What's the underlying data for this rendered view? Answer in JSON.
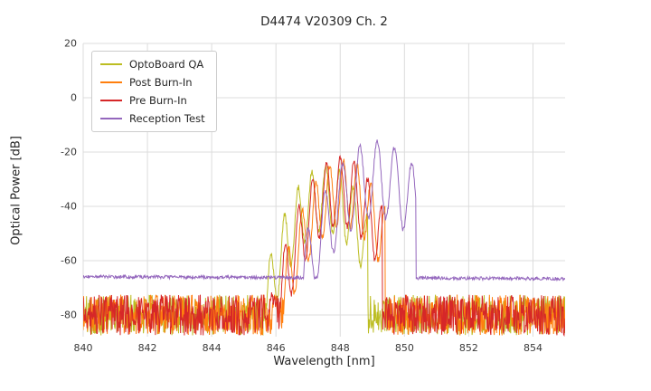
{
  "chart_data": {
    "type": "line",
    "title": "D4474 V20309 Ch. 2",
    "xlabel": "Wavelength [nm]",
    "ylabel": "Optical Power [dB]",
    "xlim": [
      840,
      855
    ],
    "ylim": [
      -88,
      20
    ],
    "xticks": [
      840,
      842,
      844,
      846,
      848,
      850,
      852,
      854
    ],
    "yticks": [
      20,
      0,
      -20,
      -40,
      -60,
      -80
    ],
    "grid": true,
    "grid_color": "#dcdcdc",
    "legend_position": "upper-left",
    "sample_step_nm": 0.015,
    "series": [
      {
        "name": "OptoBoard QA",
        "color": "#bcbd22",
        "seed": 101,
        "noise_floor_db": -80,
        "noise_amplitude_db": 7.5,
        "floor_slope_db_per_nm": 0,
        "spectrum": {
          "start_nm": 845.4,
          "end_nm": 848.85,
          "center_nm": 847.55,
          "peak_db": -25,
          "envelope_k_db_per_nm2": 11,
          "mode_spacing_nm": 0.43,
          "mode_depth_db": 24,
          "texture_noise_db": 1.2
        }
      },
      {
        "name": "Post Burn-In",
        "color": "#ff7f0e",
        "seed": 202,
        "noise_floor_db": -80,
        "noise_amplitude_db": 7.5,
        "floor_slope_db_per_nm": 0,
        "spectrum": {
          "start_nm": 845.4,
          "end_nm": 849.4,
          "center_nm": 848.1,
          "peak_db": -23,
          "envelope_k_db_per_nm2": 11,
          "mode_spacing_nm": 0.43,
          "mode_depth_db": 24,
          "texture_noise_db": 1.2
        }
      },
      {
        "name": "Pre Burn-In",
        "color": "#d62728",
        "seed": 303,
        "noise_floor_db": -80,
        "noise_amplitude_db": 7.5,
        "floor_slope_db_per_nm": 0,
        "spectrum": {
          "start_nm": 845.3,
          "end_nm": 849.3,
          "center_nm": 848.0,
          "peak_db": -22,
          "envelope_k_db_per_nm2": 11,
          "mode_spacing_nm": 0.43,
          "mode_depth_db": 25,
          "texture_noise_db": 1.2
        }
      },
      {
        "name": "Reception Test",
        "color": "#9467bd",
        "seed": 404,
        "noise_floor_db": -65.9,
        "noise_amplitude_db": 0.6,
        "floor_slope_db_per_nm": -0.05,
        "spectrum": {
          "start_nm": 846.0,
          "end_nm": 850.35,
          "center_nm": 849.15,
          "peak_db": -16,
          "envelope_k_db_per_nm2": 7,
          "mode_spacing_nm": 0.54,
          "mode_depth_db": 28,
          "texture_noise_db": 1.0
        }
      }
    ]
  }
}
